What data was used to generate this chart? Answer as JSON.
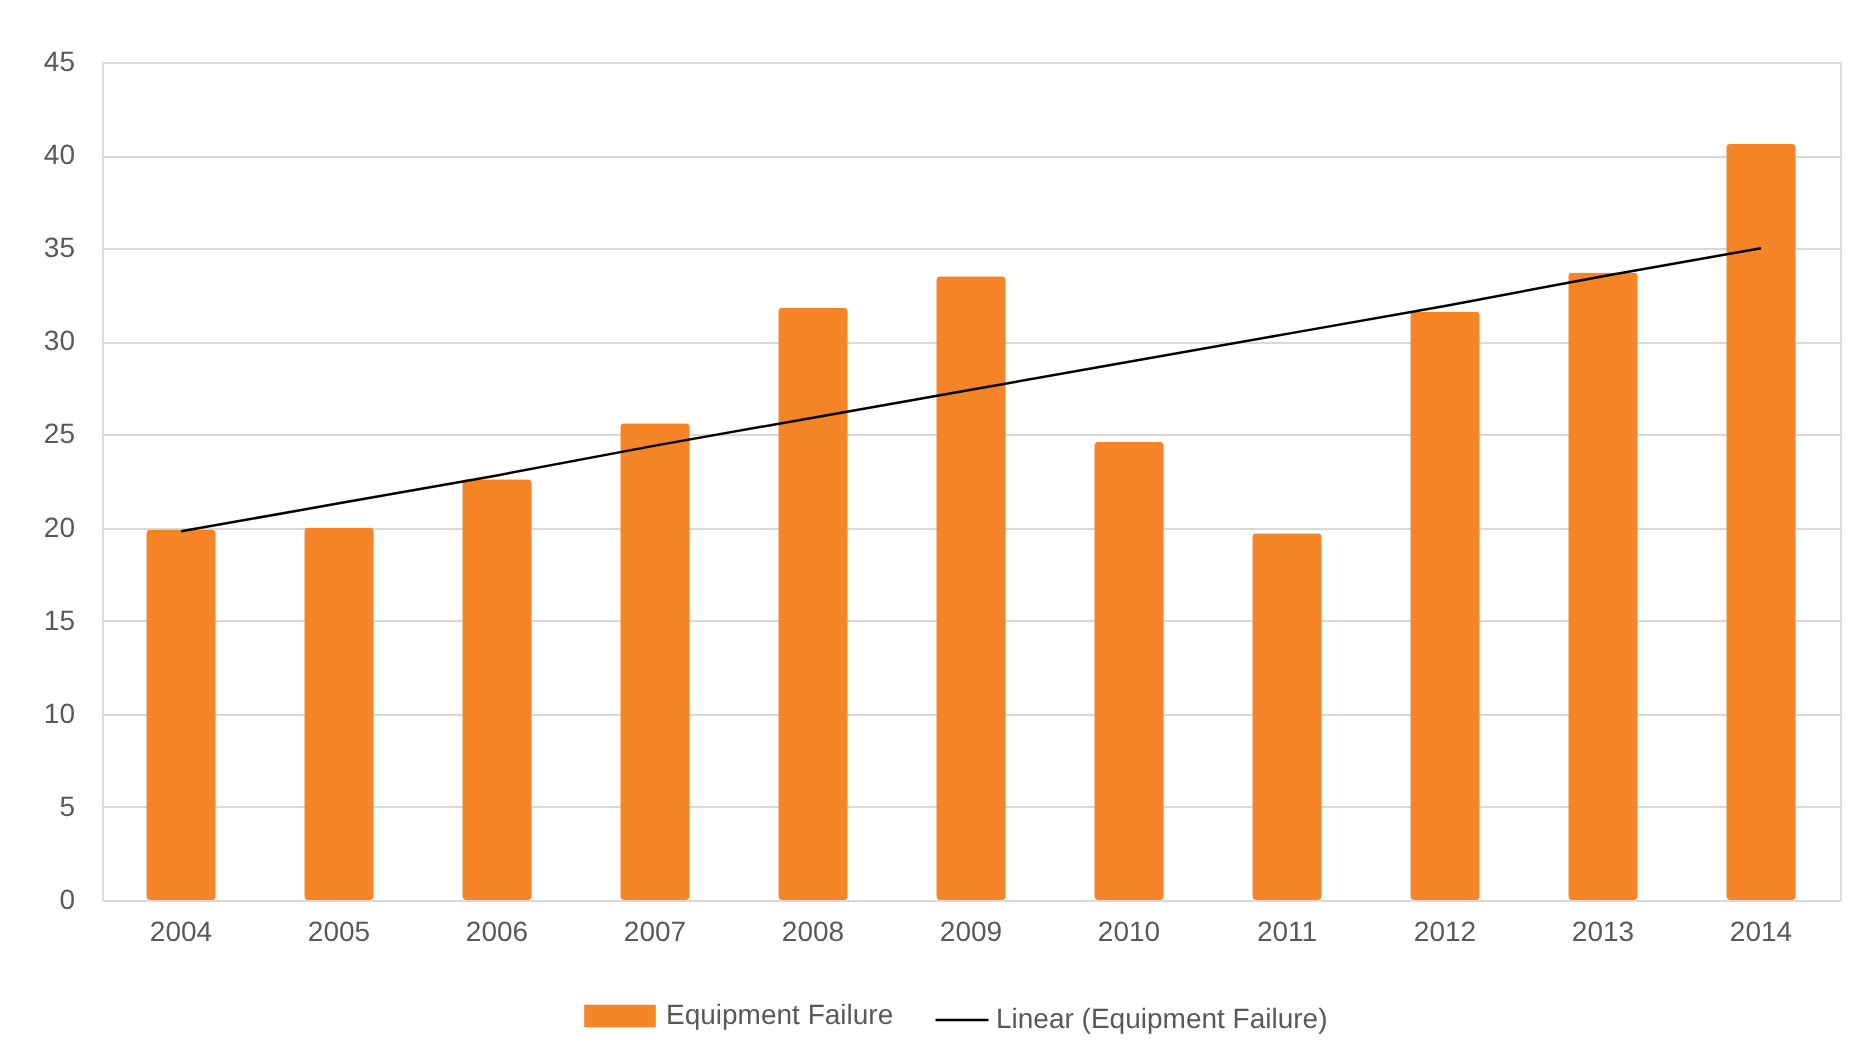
{
  "chart_data": {
    "type": "bar",
    "categories": [
      "2004",
      "2005",
      "2006",
      "2007",
      "2008",
      "2009",
      "2010",
      "2011",
      "2012",
      "2013",
      "2014"
    ],
    "series": [
      {
        "name": "Equipment Failure",
        "color": "#f58426",
        "values": [
          19.9,
          20.0,
          22.6,
          25.6,
          31.8,
          33.5,
          24.6,
          19.7,
          31.6,
          33.7,
          40.6
        ]
      },
      {
        "name": "Linear (Equipment Failure)",
        "type": "line",
        "color": "#000000",
        "values": [
          19.8,
          21.3,
          22.8,
          24.4,
          25.9,
          27.4,
          28.9,
          30.4,
          31.9,
          33.5,
          35.0
        ]
      }
    ],
    "ylim": [
      0,
      45
    ],
    "yticks": [
      0,
      5,
      10,
      15,
      20,
      25,
      30,
      35,
      40,
      45
    ],
    "grid": "y",
    "legend": "bottom"
  }
}
